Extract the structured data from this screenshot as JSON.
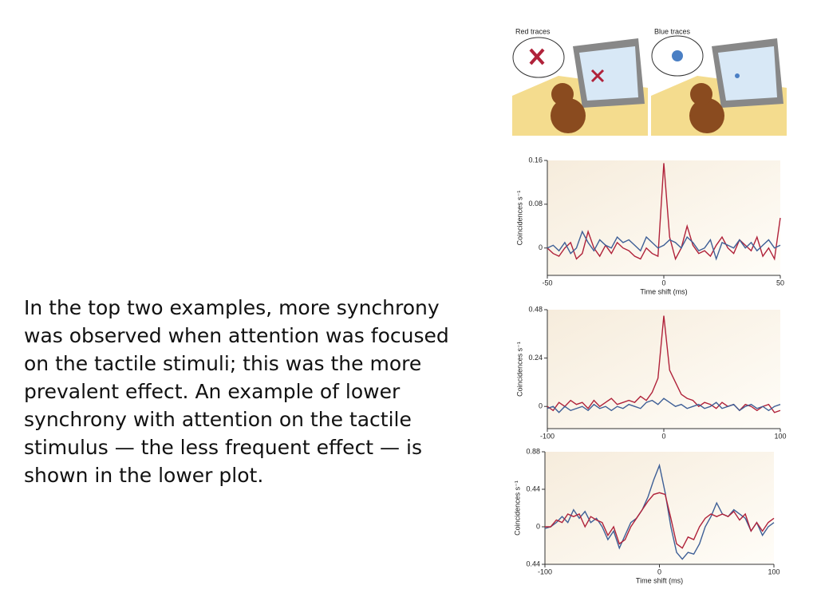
{
  "body_text": "In the top two examples, more synchrony was observed when attention was focused on the tactile stimuli; this was the more prevalent effect. An example of lower synchrony with attention on the tactile stimulus — the less frequent effect — is shown in the lower plot.",
  "illustration": {
    "left_label": "Red traces",
    "right_label": "Blue traces"
  },
  "chart_data": [
    {
      "type": "line",
      "ylabel": "Coincidences s⁻¹",
      "xlabel": "Time shift (ms)",
      "xlim": [
        -50,
        50
      ],
      "xticks": [
        -50,
        0,
        50
      ],
      "ylim": [
        -0.05,
        0.16
      ],
      "yticks": [
        0,
        0.08,
        0.16
      ],
      "x": [
        -50,
        -47.5,
        -45,
        -42.5,
        -40,
        -37.5,
        -35,
        -32.5,
        -30,
        -27.5,
        -25,
        -22.5,
        -20,
        -17.5,
        -15,
        -12.5,
        -10,
        -7.5,
        -5,
        -2.5,
        0,
        2.5,
        5,
        7.5,
        10,
        12.5,
        15,
        17.5,
        20,
        22.5,
        25,
        27.5,
        30,
        32.5,
        35,
        37.5,
        40,
        42.5,
        45,
        47.5,
        50
      ],
      "series": [
        {
          "color": "#b0223a",
          "values": [
            0.0,
            -0.01,
            -0.015,
            0.0,
            0.01,
            -0.02,
            -0.01,
            0.03,
            0.0,
            -0.015,
            0.005,
            -0.01,
            0.01,
            0.0,
            -0.005,
            -0.015,
            -0.02,
            0.0,
            -0.01,
            -0.015,
            0.155,
            0.02,
            -0.02,
            0.0,
            0.04,
            0.005,
            -0.01,
            -0.005,
            -0.015,
            0.005,
            0.02,
            0.0,
            -0.01,
            0.015,
            0.005,
            -0.005,
            0.02,
            -0.015,
            0.0,
            -0.02,
            0.055
          ]
        },
        {
          "color": "#3e5f96",
          "values": [
            0.0,
            0.005,
            -0.005,
            0.01,
            -0.01,
            0.0,
            0.03,
            0.01,
            -0.005,
            0.015,
            0.005,
            0.0,
            0.02,
            0.01,
            0.015,
            0.005,
            -0.005,
            0.02,
            0.01,
            0.0,
            0.005,
            0.015,
            0.01,
            0.0,
            0.02,
            0.01,
            -0.005,
            0.0,
            0.015,
            -0.02,
            0.01,
            0.005,
            0.0,
            0.015,
            0.0,
            0.01,
            -0.005,
            0.005,
            0.015,
            0.0,
            0.005
          ]
        }
      ]
    },
    {
      "type": "line",
      "ylabel": "Coincidences s⁻¹",
      "xlim": [
        -100,
        100
      ],
      "xticks": [
        -100,
        0,
        100
      ],
      "ylim": [
        -0.11,
        0.48
      ],
      "yticks": [
        0,
        0.24,
        0.48
      ],
      "x": [
        -100,
        -95,
        -90,
        -85,
        -80,
        -75,
        -70,
        -65,
        -60,
        -55,
        -50,
        -45,
        -40,
        -35,
        -30,
        -25,
        -20,
        -15,
        -10,
        -5,
        0,
        5,
        10,
        15,
        20,
        25,
        30,
        35,
        40,
        45,
        50,
        55,
        60,
        65,
        70,
        75,
        80,
        85,
        90,
        95,
        100
      ],
      "series": [
        {
          "color": "#b0223a",
          "values": [
            0.0,
            -0.02,
            0.02,
            0.0,
            0.03,
            0.01,
            0.02,
            -0.01,
            0.03,
            0.0,
            0.02,
            0.04,
            0.01,
            0.02,
            0.03,
            0.02,
            0.05,
            0.03,
            0.07,
            0.14,
            0.45,
            0.18,
            0.12,
            0.06,
            0.04,
            0.03,
            0.0,
            0.02,
            0.01,
            -0.01,
            0.02,
            0.0,
            0.01,
            -0.02,
            0.01,
            0.0,
            -0.02,
            0.0,
            0.01,
            -0.03,
            -0.02
          ]
        },
        {
          "color": "#3e5f96",
          "values": [
            -0.01,
            0.0,
            -0.03,
            0.0,
            -0.02,
            -0.01,
            0.0,
            -0.02,
            0.01,
            -0.01,
            0.0,
            -0.02,
            0.0,
            -0.01,
            0.01,
            0.0,
            -0.01,
            0.02,
            0.03,
            0.01,
            0.04,
            0.02,
            0.0,
            0.01,
            -0.01,
            0.0,
            0.01,
            -0.01,
            0.0,
            0.02,
            -0.01,
            0.0,
            0.01,
            -0.02,
            0.0,
            0.01,
            -0.01,
            0.0,
            -0.02,
            0.0,
            0.01
          ]
        }
      ]
    },
    {
      "type": "line",
      "ylabel": "Coincidences s⁻¹",
      "xlabel": "Time shift (ms)",
      "xlim": [
        -100,
        100
      ],
      "xticks": [
        -100,
        0,
        100
      ],
      "ylim": [
        -0.44,
        0.88
      ],
      "yticks": [
        {
          "value": -0.44,
          "label": "0.44"
        },
        0,
        0.44,
        0.88
      ],
      "x": [
        -100,
        -95,
        -90,
        -85,
        -80,
        -75,
        -70,
        -65,
        -60,
        -55,
        -50,
        -45,
        -40,
        -35,
        -30,
        -25,
        -20,
        -15,
        -10,
        -5,
        0,
        5,
        10,
        15,
        20,
        25,
        30,
        35,
        40,
        45,
        50,
        55,
        60,
        65,
        70,
        75,
        80,
        85,
        90,
        95,
        100
      ],
      "series": [
        {
          "color": "#3e5f96",
          "values": [
            -0.02,
            0.0,
            0.05,
            0.12,
            0.05,
            0.2,
            0.1,
            0.18,
            0.05,
            0.1,
            0.0,
            -0.15,
            -0.05,
            -0.25,
            -0.1,
            0.05,
            0.1,
            0.2,
            0.35,
            0.55,
            0.72,
            0.4,
            0.0,
            -0.3,
            -0.38,
            -0.3,
            -0.32,
            -0.2,
            0.0,
            0.12,
            0.28,
            0.15,
            0.12,
            0.2,
            0.15,
            0.1,
            -0.05,
            0.05,
            -0.1,
            0.0,
            0.05
          ]
        },
        {
          "color": "#b0223a",
          "values": [
            0.0,
            0.0,
            0.08,
            0.05,
            0.15,
            0.12,
            0.15,
            0.0,
            0.12,
            0.08,
            0.05,
            -0.1,
            0.0,
            -0.2,
            -0.15,
            0.0,
            0.1,
            0.2,
            0.3,
            0.38,
            0.4,
            0.38,
            0.1,
            -0.2,
            -0.25,
            -0.12,
            -0.15,
            0.0,
            0.1,
            0.15,
            0.12,
            0.15,
            0.12,
            0.18,
            0.08,
            0.15,
            -0.05,
            0.05,
            -0.05,
            0.05,
            0.1
          ]
        }
      ]
    }
  ]
}
